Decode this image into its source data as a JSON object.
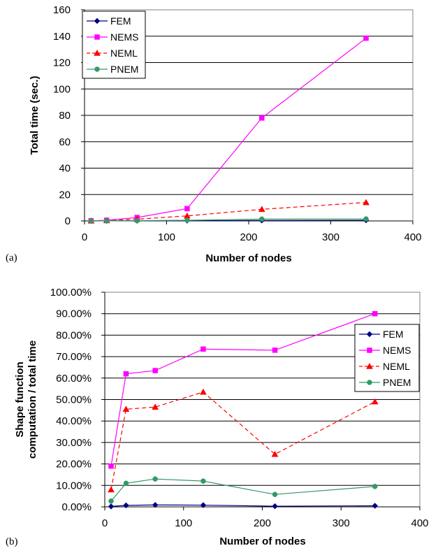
{
  "colors": {
    "FEM": "#000080",
    "NEMS": "#ff00ff",
    "NEML": "#ff0000",
    "PNEM": "#339966"
  },
  "chart_data": [
    {
      "type": "line",
      "panel_label": "(a)",
      "xlabel": "Number of nodes",
      "ylabel": "Total time (sec.)",
      "xlim": [
        0,
        400
      ],
      "ylim": [
        0,
        160
      ],
      "xticks": [
        "0",
        "100",
        "200",
        "300",
        "400"
      ],
      "yticks": [
        "0",
        "20",
        "40",
        "60",
        "80",
        "100",
        "120",
        "140",
        "160"
      ],
      "grid": "horizontal",
      "legend_position": "top-left",
      "x": [
        8,
        27,
        64,
        125,
        216,
        343
      ],
      "series": [
        {
          "name": "FEM",
          "marker": "diamond",
          "line": "solid",
          "values": [
            0.0,
            0.05,
            0.1,
            0.2,
            0.35,
            0.5
          ]
        },
        {
          "name": "NEMS",
          "marker": "square",
          "line": "solid",
          "values": [
            0.1,
            0.5,
            2.6,
            9.3,
            78,
            138.5
          ]
        },
        {
          "name": "NEML",
          "marker": "triangle",
          "line": "dashed",
          "values": [
            0.05,
            0.3,
            1.3,
            3.8,
            8.8,
            14
          ]
        },
        {
          "name": "PNEM",
          "marker": "circle",
          "line": "solid",
          "values": [
            0.03,
            0.05,
            0.2,
            0.5,
            1.4,
            1.5
          ]
        }
      ]
    },
    {
      "type": "line",
      "panel_label": "(b)",
      "xlabel": "Number of nodes",
      "ylabel": "Shape function computation / total time",
      "ylabel_lines": [
        "Shape function",
        "computation / total time"
      ],
      "xlim": [
        0,
        400
      ],
      "ylim": [
        0,
        1
      ],
      "xticks": [
        "0",
        "100",
        "200",
        "300",
        "400"
      ],
      "yticks": [
        "0.00%",
        "10.00%",
        "20.00%",
        "30.00%",
        "40.00%",
        "50.00%",
        "60.00%",
        "70.00%",
        "80.00%",
        "90.00%",
        "100.00%"
      ],
      "grid": "horizontal",
      "legend_position": "right",
      "x": [
        8,
        27,
        64,
        125,
        216,
        343
      ],
      "series": [
        {
          "name": "FEM",
          "marker": "diamond",
          "line": "solid",
          "values": [
            0.002,
            0.007,
            0.009,
            0.008,
            0.003,
            0.005
          ]
        },
        {
          "name": "NEMS",
          "marker": "square",
          "line": "solid",
          "values": [
            0.19,
            0.62,
            0.635,
            0.735,
            0.73,
            0.9
          ]
        },
        {
          "name": "NEML",
          "marker": "triangle",
          "line": "dashed",
          "values": [
            0.08,
            0.455,
            0.465,
            0.535,
            0.245,
            0.49
          ]
        },
        {
          "name": "PNEM",
          "marker": "circle",
          "line": "solid",
          "values": [
            0.027,
            0.11,
            0.13,
            0.12,
            0.058,
            0.095
          ]
        }
      ]
    }
  ]
}
